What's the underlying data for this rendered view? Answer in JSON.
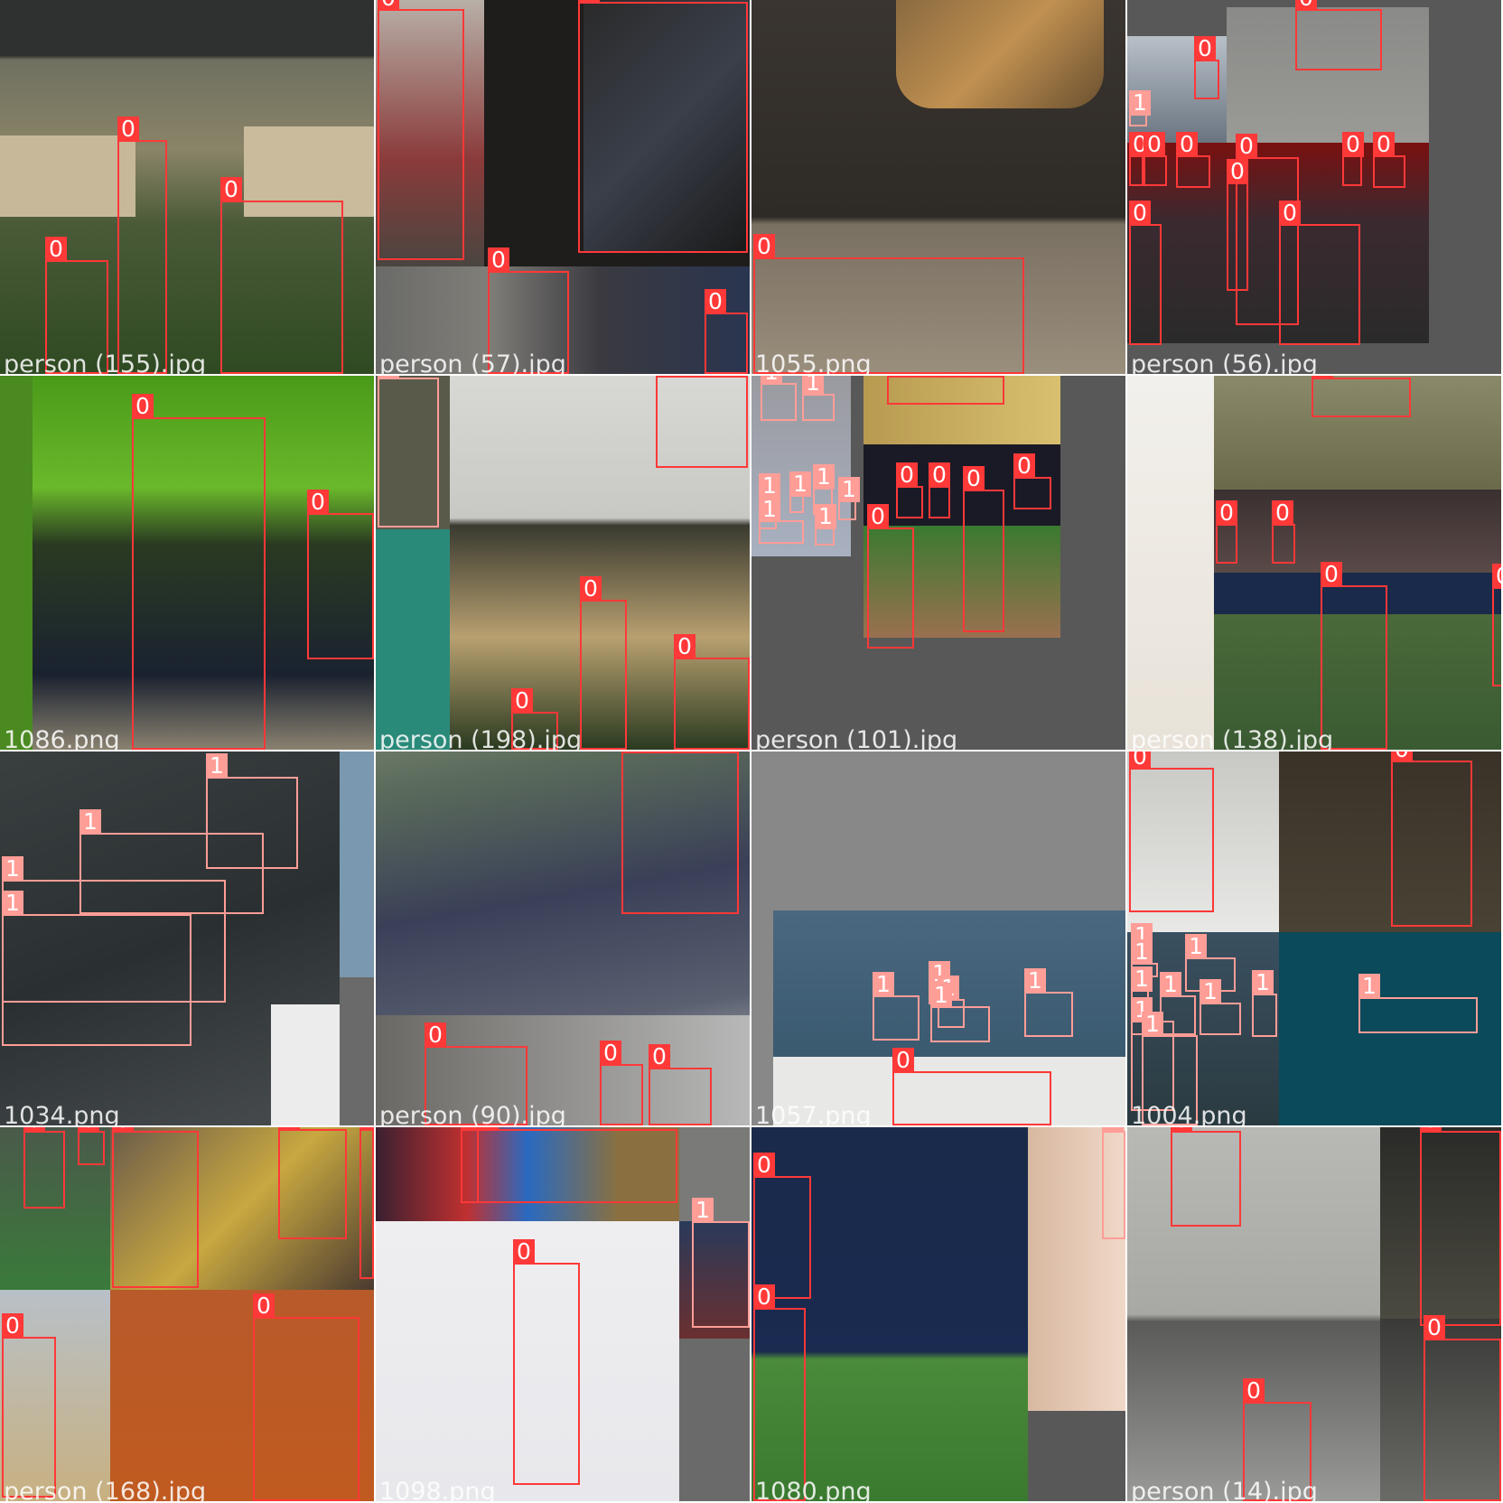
{
  "colors": {
    "class0": "#ff3838",
    "class1": "#ff9d97"
  },
  "class_labels": {
    "c0": "0",
    "c1": "1"
  },
  "tiles": [
    {
      "id": "t00",
      "filename": "person (155).jpg"
    },
    {
      "id": "t01",
      "filename": "person (57).jpg"
    },
    {
      "id": "t02",
      "filename": "1055.png"
    },
    {
      "id": "t03",
      "filename": "person (56).jpg"
    },
    {
      "id": "t10",
      "filename": "1086.png"
    },
    {
      "id": "t11",
      "filename": "person (198).jpg"
    },
    {
      "id": "t12",
      "filename": "person (101).jpg"
    },
    {
      "id": "t13",
      "filename": "person (138).jpg"
    },
    {
      "id": "t20",
      "filename": "1034.png"
    },
    {
      "id": "t21",
      "filename": "person (90).jpg"
    },
    {
      "id": "t22",
      "filename": "1057.png"
    },
    {
      "id": "t23",
      "filename": "1004.png"
    },
    {
      "id": "t30",
      "filename": "person (168).jpg"
    },
    {
      "id": "t31",
      "filename": "1098.png"
    },
    {
      "id": "t32",
      "filename": "1080.png"
    },
    {
      "id": "t33",
      "filename": "person (14).jpg"
    }
  ]
}
